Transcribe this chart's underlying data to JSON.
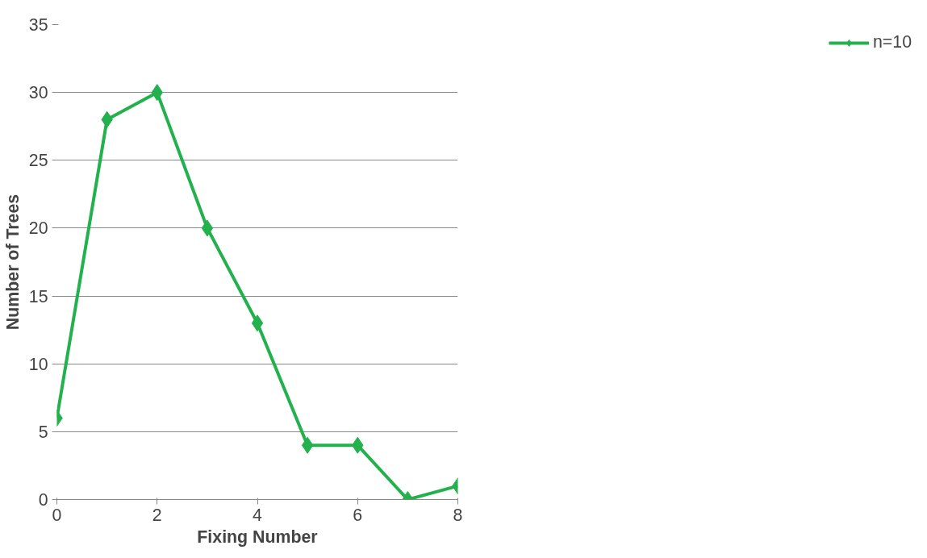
{
  "chart_data": {
    "type": "line",
    "xlabel": "Fixing Number",
    "ylabel": "Number of Trees",
    "x": [
      0,
      1,
      2,
      3,
      4,
      5,
      6,
      7,
      8
    ],
    "series": [
      {
        "name": "n=10",
        "color": "#22b14c",
        "values": [
          6,
          28,
          30,
          20,
          13,
          4,
          4,
          0,
          1
        ]
      }
    ],
    "xlim": [
      0,
      8
    ],
    "xticks": [
      0,
      2,
      4,
      6,
      8
    ],
    "ylim": [
      0,
      35
    ],
    "yticks": [
      0,
      5,
      10,
      15,
      20,
      25,
      30,
      35
    ],
    "grid": "y",
    "legend": "right",
    "marker": "diamond",
    "line_style": "solid"
  }
}
